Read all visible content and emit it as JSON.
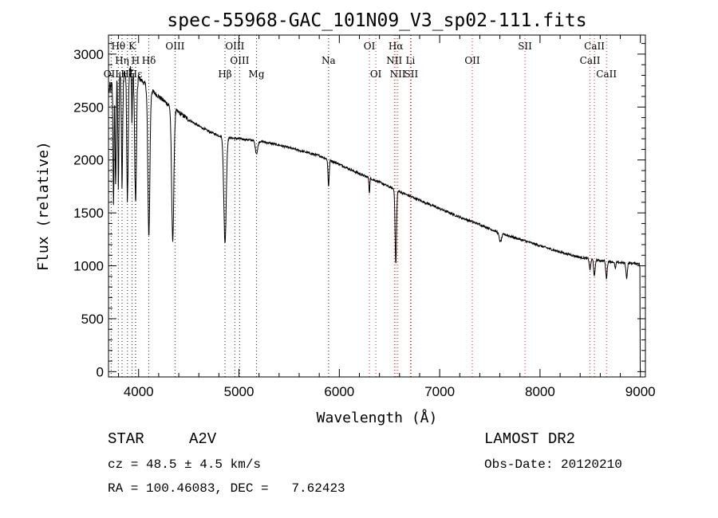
{
  "chart_data": {
    "type": "line",
    "title": "spec-55968-GAC_101N09_V3_sp02-111.fits",
    "xlabel": "Wavelength (Å)",
    "ylabel": "Flux (relative)",
    "xlim": [
      3700,
      9050
    ],
    "ylim": [
      -50,
      3180
    ],
    "xticks": [
      4000,
      5000,
      6000,
      7000,
      8000,
      9000
    ],
    "yticks": [
      0,
      500,
      1000,
      1500,
      2000,
      2500,
      3000
    ],
    "xtick_labels": [
      "4000",
      "5000",
      "6000",
      "7000",
      "8000",
      "9000"
    ],
    "ytick_labels": [
      "0",
      "500",
      "1000",
      "1500",
      "2000",
      "2500",
      "3000"
    ],
    "series": [
      {
        "name": "spectrum",
        "continuum": [
          [
            3700,
            2650
          ],
          [
            3780,
            2750
          ],
          [
            3900,
            2850
          ],
          [
            4000,
            2780
          ],
          [
            4100,
            2680
          ],
          [
            4200,
            2600
          ],
          [
            4300,
            2520
          ],
          [
            4400,
            2450
          ],
          [
            4500,
            2380
          ],
          [
            4600,
            2320
          ],
          [
            4700,
            2270
          ],
          [
            4800,
            2230
          ],
          [
            4900,
            2210
          ],
          [
            5000,
            2200
          ],
          [
            5200,
            2180
          ],
          [
            5400,
            2140
          ],
          [
            5600,
            2090
          ],
          [
            5800,
            2040
          ],
          [
            6000,
            1960
          ],
          [
            6200,
            1870
          ],
          [
            6400,
            1790
          ],
          [
            6600,
            1700
          ],
          [
            6800,
            1620
          ],
          [
            7000,
            1540
          ],
          [
            7200,
            1460
          ],
          [
            7400,
            1390
          ],
          [
            7600,
            1310
          ],
          [
            7800,
            1250
          ],
          [
            8000,
            1190
          ],
          [
            8200,
            1130
          ],
          [
            8400,
            1080
          ],
          [
            8600,
            1050
          ],
          [
            8800,
            1030
          ],
          [
            9000,
            1020
          ]
        ],
        "absorption_lines": [
          [
            3750,
            1100,
            5
          ],
          [
            3771,
            1000,
            5
          ],
          [
            3798,
            1000,
            5
          ],
          [
            3835,
            1050,
            6
          ],
          [
            3889,
            1200,
            7
          ],
          [
            3934,
            500,
            3
          ],
          [
            3970,
            1200,
            9
          ],
          [
            4102,
            1400,
            10
          ],
          [
            4340,
            1250,
            11
          ],
          [
            4861,
            1000,
            12
          ],
          [
            5175,
            120,
            12
          ],
          [
            5893,
            250,
            6
          ],
          [
            6300,
            150,
            4
          ],
          [
            6563,
            700,
            7
          ],
          [
            7605,
            80,
            12
          ],
          [
            8498,
            100,
            7
          ],
          [
            8542,
            160,
            7
          ],
          [
            8662,
            160,
            7
          ],
          [
            8750,
            60,
            6
          ],
          [
            8863,
            140,
            7
          ]
        ]
      }
    ],
    "line_markers": [
      {
        "label": "Hθ",
        "wavelength": 3798,
        "color": "#000000",
        "row": 1
      },
      {
        "label": "K",
        "wavelength": 3934,
        "color": "#000000",
        "row": 1
      },
      {
        "label": "Hη",
        "wavelength": 3835,
        "color": "#000000",
        "row": 2
      },
      {
        "label": "H",
        "wavelength": 3970,
        "color": "#000000",
        "row": 2
      },
      {
        "label": "Hδ",
        "wavelength": 4102,
        "color": "#000000",
        "row": 2
      },
      {
        "label": "OII",
        "wavelength": 3727,
        "color": "#000000",
        "row": 3
      },
      {
        "label": "Hζ",
        "wavelength": 3889,
        "color": "#000000",
        "row": 3
      },
      {
        "label": "Hε",
        "wavelength": 3970,
        "color": "#000000",
        "row": 3
      },
      {
        "label": "OIII",
        "wavelength": 4363,
        "color": "#000000",
        "row": 1
      },
      {
        "label": "Hβ",
        "wavelength": 4861,
        "color": "#000000",
        "row": 3
      },
      {
        "label": "OIII",
        "wavelength": 4959,
        "color": "#000000",
        "row": 1
      },
      {
        "label": "OIII",
        "wavelength": 5007,
        "color": "#000000",
        "row": 2
      },
      {
        "label": "Mg",
        "wavelength": 5175,
        "color": "#000000",
        "row": 3
      },
      {
        "label": "Na",
        "wavelength": 5893,
        "color": "#000000",
        "row": 2
      },
      {
        "label": "OI",
        "wavelength": 6300,
        "color": "#cc0000",
        "row": 1
      },
      {
        "label": "OI",
        "wavelength": 6364,
        "color": "#cc0000",
        "row": 3
      },
      {
        "label": "Hα",
        "wavelength": 6563,
        "color": "#cc0000",
        "row": 1
      },
      {
        "label": "NII",
        "wavelength": 6548,
        "color": "#cc0000",
        "row": 2
      },
      {
        "label": "Li",
        "wavelength": 6708,
        "color": "#cc0000",
        "row": 2
      },
      {
        "label": "NII",
        "wavelength": 6583,
        "color": "#cc0000",
        "row": 3
      },
      {
        "label": "SII",
        "wavelength": 6716,
        "color": "#cc0000",
        "row": 3
      },
      {
        "label": "OII",
        "wavelength": 7325,
        "color": "#cc0000",
        "row": 2
      },
      {
        "label": "SII",
        "wavelength": 7850,
        "color": "#cc0000",
        "row": 1
      },
      {
        "label": "CaII",
        "wavelength": 8542,
        "color": "#cc0000",
        "row": 1
      },
      {
        "label": "CaII",
        "wavelength": 8498,
        "color": "#cc0000",
        "row": 2
      },
      {
        "label": "CaII",
        "wavelength": 8662,
        "color": "#cc0000",
        "row": 3
      }
    ]
  },
  "info": {
    "class_label": "STAR",
    "subclass": "A2V",
    "survey": "LAMOST DR2",
    "cz": "cz = 48.5 ± 4.5 km/s",
    "obs_date": "Obs-Date: 20120210",
    "coords": "RA = 100.46083, DEC =   7.62423"
  }
}
